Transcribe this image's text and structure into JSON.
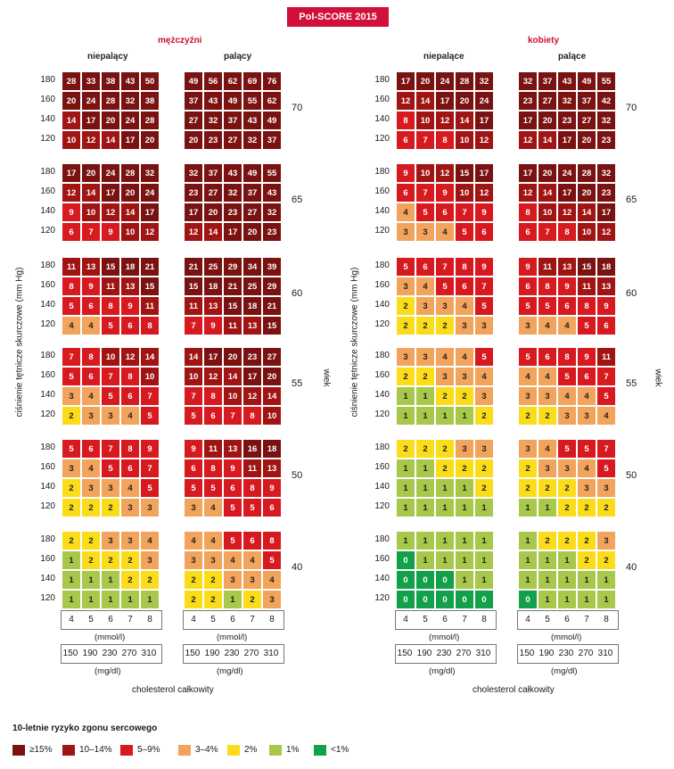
{
  "chart_data": {
    "type": "heatmap",
    "title": "Pol-SCORE 2015",
    "ylabel": "ciśnienie tętnicze skurczowe (mm Hg)",
    "age_axis_label": "wiek",
    "xlabel": "cholesterol całkowity",
    "x_unit_mmol": "(mmol/l)",
    "x_unit_mg": "(mg/dl)",
    "x_mmol": [
      "4",
      "5",
      "6",
      "7",
      "8"
    ],
    "x_mgdl": [
      "150",
      "190",
      "230",
      "270",
      "310"
    ],
    "y_sbp": [
      "180",
      "160",
      "140",
      "120"
    ],
    "ages": [
      "70",
      "65",
      "60",
      "55",
      "50",
      "40"
    ],
    "panels": [
      {
        "sex": "mężczyźni",
        "smoking": "niepalący",
        "grids": [
          [
            [
              28,
              33,
              38,
              43,
              50
            ],
            [
              20,
              24,
              28,
              32,
              38
            ],
            [
              14,
              17,
              20,
              24,
              28
            ],
            [
              10,
              12,
              14,
              17,
              20
            ]
          ],
          [
            [
              17,
              20,
              24,
              28,
              32
            ],
            [
              12,
              14,
              17,
              20,
              24
            ],
            [
              9,
              10,
              12,
              14,
              17
            ],
            [
              6,
              7,
              9,
              10,
              12
            ]
          ],
          [
            [
              11,
              13,
              15,
              18,
              21
            ],
            [
              8,
              9,
              11,
              13,
              15
            ],
            [
              5,
              6,
              8,
              9,
              11
            ],
            [
              4,
              4,
              5,
              6,
              8
            ]
          ],
          [
            [
              7,
              8,
              10,
              12,
              14
            ],
            [
              5,
              6,
              7,
              8,
              10
            ],
            [
              3,
              4,
              5,
              6,
              7
            ],
            [
              2,
              3,
              3,
              4,
              5
            ]
          ],
          [
            [
              5,
              6,
              7,
              8,
              9
            ],
            [
              3,
              4,
              5,
              6,
              7
            ],
            [
              2,
              3,
              3,
              4,
              5
            ],
            [
              2,
              2,
              2,
              3,
              3
            ]
          ],
          [
            [
              2,
              2,
              3,
              3,
              4
            ],
            [
              1,
              2,
              2,
              2,
              3
            ],
            [
              1,
              1,
              1,
              2,
              2
            ],
            [
              1,
              1,
              1,
              1,
              1
            ]
          ]
        ]
      },
      {
        "sex": "mężczyźni",
        "smoking": "palący",
        "grids": [
          [
            [
              49,
              56,
              62,
              69,
              76
            ],
            [
              37,
              43,
              49,
              55,
              62
            ],
            [
              27,
              32,
              37,
              43,
              49
            ],
            [
              20,
              23,
              27,
              32,
              37
            ]
          ],
          [
            [
              32,
              37,
              43,
              49,
              55
            ],
            [
              23,
              27,
              32,
              37,
              43
            ],
            [
              17,
              20,
              23,
              27,
              32
            ],
            [
              12,
              14,
              17,
              20,
              23
            ]
          ],
          [
            [
              21,
              25,
              29,
              34,
              39
            ],
            [
              15,
              18,
              21,
              25,
              29
            ],
            [
              11,
              13,
              15,
              18,
              21
            ],
            [
              7,
              9,
              11,
              13,
              15
            ]
          ],
          [
            [
              14,
              17,
              20,
              23,
              27
            ],
            [
              10,
              12,
              14,
              17,
              20
            ],
            [
              7,
              8,
              10,
              12,
              14
            ],
            [
              5,
              6,
              7,
              8,
              10
            ]
          ],
          [
            [
              9,
              11,
              13,
              16,
              18
            ],
            [
              6,
              8,
              9,
              11,
              13
            ],
            [
              5,
              5,
              6,
              8,
              9
            ],
            [
              3,
              4,
              5,
              5,
              6
            ]
          ],
          [
            [
              4,
              4,
              5,
              6,
              8
            ],
            [
              3,
              3,
              4,
              4,
              5
            ],
            [
              2,
              2,
              3,
              3,
              4
            ],
            [
              2,
              2,
              1,
              2,
              3
            ]
          ]
        ]
      },
      {
        "sex": "kobiety",
        "smoking": "niepalące",
        "grids": [
          [
            [
              17,
              20,
              24,
              28,
              32
            ],
            [
              12,
              14,
              17,
              20,
              24
            ],
            [
              8,
              10,
              12,
              14,
              17
            ],
            [
              6,
              7,
              8,
              10,
              12
            ]
          ],
          [
            [
              9,
              10,
              12,
              15,
              17
            ],
            [
              6,
              7,
              9,
              10,
              12
            ],
            [
              4,
              5,
              6,
              7,
              9
            ],
            [
              3,
              3,
              4,
              5,
              6
            ]
          ],
          [
            [
              5,
              6,
              7,
              8,
              9
            ],
            [
              3,
              4,
              5,
              6,
              7
            ],
            [
              2,
              3,
              3,
              4,
              5
            ],
            [
              2,
              2,
              2,
              3,
              3
            ]
          ],
          [
            [
              3,
              3,
              4,
              4,
              5
            ],
            [
              2,
              2,
              3,
              3,
              4
            ],
            [
              1,
              1,
              2,
              2,
              3
            ],
            [
              1,
              1,
              1,
              1,
              2
            ]
          ],
          [
            [
              2,
              2,
              2,
              3,
              3
            ],
            [
              1,
              1,
              2,
              2,
              2
            ],
            [
              1,
              1,
              1,
              1,
              2
            ],
            [
              1,
              1,
              1,
              1,
              1
            ]
          ],
          [
            [
              1,
              1,
              1,
              1,
              1
            ],
            [
              0,
              1,
              1,
              1,
              1
            ],
            [
              0,
              0,
              0,
              1,
              1
            ],
            [
              0,
              0,
              0,
              0,
              0
            ]
          ]
        ]
      },
      {
        "sex": "kobiety",
        "smoking": "palące",
        "grids": [
          [
            [
              32,
              37,
              43,
              49,
              55
            ],
            [
              23,
              27,
              32,
              37,
              42
            ],
            [
              17,
              20,
              23,
              27,
              32
            ],
            [
              12,
              14,
              17,
              20,
              23
            ]
          ],
          [
            [
              17,
              20,
              24,
              28,
              32
            ],
            [
              12,
              14,
              17,
              20,
              23
            ],
            [
              8,
              10,
              12,
              14,
              17
            ],
            [
              6,
              7,
              8,
              10,
              12
            ]
          ],
          [
            [
              9,
              11,
              13,
              15,
              18
            ],
            [
              6,
              8,
              9,
              11,
              13
            ],
            [
              5,
              5,
              6,
              8,
              9
            ],
            [
              3,
              4,
              4,
              5,
              6
            ]
          ],
          [
            [
              5,
              6,
              8,
              9,
              11
            ],
            [
              4,
              4,
              5,
              6,
              7
            ],
            [
              3,
              3,
              4,
              4,
              5
            ],
            [
              2,
              2,
              3,
              3,
              4
            ]
          ],
          [
            [
              3,
              4,
              5,
              5,
              7
            ],
            [
              2,
              3,
              3,
              4,
              5
            ],
            [
              2,
              2,
              2,
              3,
              3
            ],
            [
              1,
              1,
              2,
              2,
              2
            ]
          ],
          [
            [
              1,
              2,
              2,
              2,
              3
            ],
            [
              1,
              1,
              1,
              2,
              2
            ],
            [
              1,
              1,
              1,
              1,
              1
            ],
            [
              0,
              1,
              1,
              1,
              1
            ]
          ]
        ]
      }
    ],
    "legend_title": "10-letnie ryzyko zgonu sercowego",
    "legend": [
      {
        "label": "≥15%",
        "color": "#7a1212"
      },
      {
        "label": "10–14%",
        "color": "#a01414"
      },
      {
        "label": "5–9%",
        "color": "#d71920"
      },
      {
        "label": "3–4%",
        "color": "#f2a35c"
      },
      {
        "label": "2%",
        "color": "#fbdc1a"
      },
      {
        "label": "1%",
        "color": "#a7c84a"
      },
      {
        "label": "<1%",
        "color": "#12a04a"
      }
    ]
  }
}
